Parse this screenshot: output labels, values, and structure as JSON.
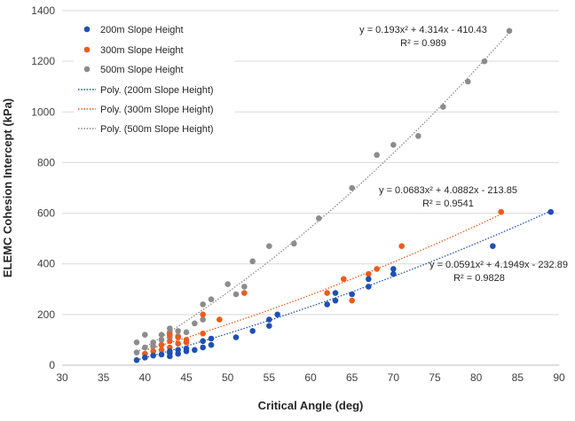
{
  "colors": {
    "s200": "#1f4fb4",
    "s300": "#ea5c1c",
    "s500": "#8c8c8c",
    "grid": "#d9d9d9",
    "axis": "#bfbfbf",
    "text": "#404040",
    "labels": "#262626"
  },
  "chart_data": {
    "type": "scatter",
    "title": "",
    "xlabel": "Critical Angle (deg)",
    "ylabel": "ELEMC Cohesion Intercept (kPa)",
    "xlim": [
      30,
      90
    ],
    "ylim": [
      0,
      1400
    ],
    "xticks": [
      30,
      35,
      40,
      45,
      50,
      55,
      60,
      65,
      70,
      75,
      80,
      85,
      90
    ],
    "yticks": [
      0,
      200,
      400,
      600,
      800,
      1000,
      1200,
      1400
    ],
    "grid": "horizontal",
    "legend_position": "top-left",
    "series": [
      {
        "name": "200m Slope Height",
        "color_key": "s200",
        "trend_name": "Poly. (200m Slope Height)",
        "trend_domain": [
          39,
          89
        ],
        "trend_coeffs": [
          0.0591,
          4.1949,
          -232.89
        ],
        "equation": "y = 0.0591x² + 4.1949x - 232.89",
        "r2": "R² = 0.9828",
        "points": [
          [
            39,
            20
          ],
          [
            40,
            30
          ],
          [
            41,
            38
          ],
          [
            42,
            42
          ],
          [
            43,
            35
          ],
          [
            43,
            48
          ],
          [
            43,
            55
          ],
          [
            44,
            45
          ],
          [
            44,
            60
          ],
          [
            45,
            55
          ],
          [
            45,
            65
          ],
          [
            46,
            60
          ],
          [
            47,
            70
          ],
          [
            47,
            95
          ],
          [
            48,
            80
          ],
          [
            48,
            105
          ],
          [
            51,
            110
          ],
          [
            53,
            135
          ],
          [
            55,
            155
          ],
          [
            55,
            180
          ],
          [
            56,
            200
          ],
          [
            62,
            240
          ],
          [
            63,
            255
          ],
          [
            63,
            285
          ],
          [
            65,
            280
          ],
          [
            67,
            310
          ],
          [
            67,
            340
          ],
          [
            70,
            360
          ],
          [
            70,
            380
          ],
          [
            82,
            470
          ],
          [
            89,
            605
          ]
        ]
      },
      {
        "name": "300m Slope Height",
        "color_key": "s300",
        "trend_name": "Poly. (300m Slope Height)",
        "trend_domain": [
          40,
          83
        ],
        "trend_coeffs": [
          0.0683,
          4.0882,
          -213.85
        ],
        "equation": "y = 0.0683x² + 4.0882x - 213.85",
        "r2": "R² = 0.9541",
        "points": [
          [
            40,
            45
          ],
          [
            41,
            55
          ],
          [
            42,
            60
          ],
          [
            42,
            80
          ],
          [
            43,
            70
          ],
          [
            43,
            95
          ],
          [
            43,
            120
          ],
          [
            44,
            85
          ],
          [
            44,
            110
          ],
          [
            45,
            90
          ],
          [
            45,
            100
          ],
          [
            47,
            125
          ],
          [
            47,
            200
          ],
          [
            49,
            180
          ],
          [
            52,
            285
          ],
          [
            62,
            285
          ],
          [
            64,
            340
          ],
          [
            65,
            255
          ],
          [
            67,
            360
          ],
          [
            68,
            380
          ],
          [
            71,
            470
          ],
          [
            83,
            605
          ]
        ]
      },
      {
        "name": "500m Slope Height",
        "color_key": "s500",
        "trend_name": "Poly. (500m Slope Height)",
        "trend_domain": [
          39,
          84
        ],
        "trend_coeffs": [
          0.193,
          4.314,
          -410.43
        ],
        "equation": "y = 0.193x² + 4.314x - 410.43",
        "r2": "R² = 0.989",
        "points": [
          [
            39,
            50
          ],
          [
            39,
            90
          ],
          [
            40,
            70
          ],
          [
            40,
            120
          ],
          [
            41,
            75
          ],
          [
            41,
            90
          ],
          [
            42,
            100
          ],
          [
            42,
            120
          ],
          [
            43,
            110
          ],
          [
            43,
            130
          ],
          [
            43,
            145
          ],
          [
            44,
            115
          ],
          [
            44,
            135
          ],
          [
            45,
            130
          ],
          [
            46,
            165
          ],
          [
            47,
            180
          ],
          [
            47,
            240
          ],
          [
            48,
            260
          ],
          [
            50,
            320
          ],
          [
            51,
            280
          ],
          [
            52,
            310
          ],
          [
            53,
            410
          ],
          [
            55,
            470
          ],
          [
            58,
            480
          ],
          [
            61,
            580
          ],
          [
            65,
            700
          ],
          [
            68,
            830
          ],
          [
            70,
            870
          ],
          [
            73,
            905
          ],
          [
            76,
            1020
          ],
          [
            79,
            1120
          ],
          [
            81,
            1200
          ],
          [
            84,
            1320
          ]
        ]
      }
    ]
  }
}
